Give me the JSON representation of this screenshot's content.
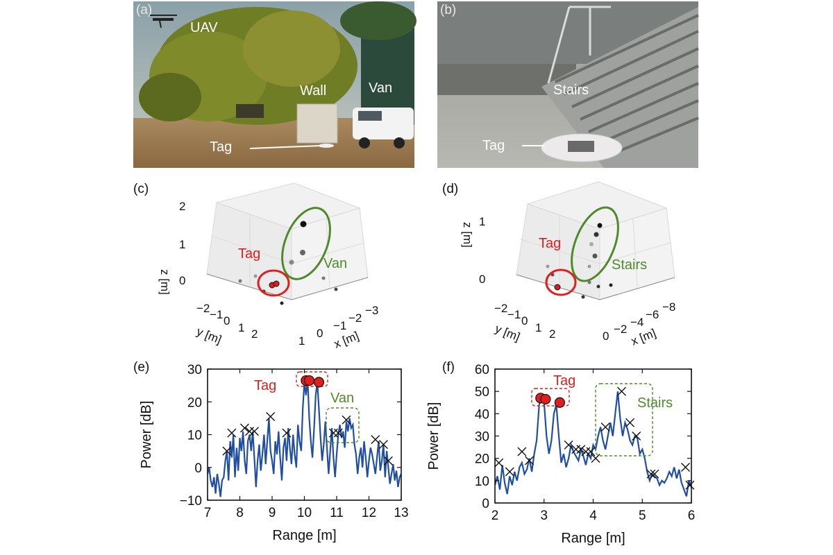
{
  "photos": {
    "a": {
      "letter": "(a)",
      "labels": {
        "uav": "UAV",
        "wall": "Wall",
        "van": "Van",
        "tag": "Tag"
      }
    },
    "b": {
      "letter": "(b)",
      "labels": {
        "stairs": "Stairs",
        "tag": "Tag"
      }
    }
  },
  "plots3d": {
    "c": {
      "letter": "(c)",
      "tag": "Tag",
      "target": "Van",
      "z_ticks": [
        "2",
        "1",
        "0"
      ],
      "y_ticks": [
        "−2",
        "−1",
        "0",
        "1",
        "2"
      ],
      "x_ticks": [
        "1",
        "0",
        "−1",
        "−2",
        "−3"
      ],
      "zlabel": "z [m]",
      "ylabel": "y [m]",
      "xlabel": "x [m]"
    },
    "d": {
      "letter": "(d)",
      "tag": "Tag",
      "target": "Stairs",
      "z_ticks": [
        "1",
        "0"
      ],
      "y_ticks": [
        "−2",
        "−1",
        "0",
        "1",
        "2"
      ],
      "x_ticks": [
        "0",
        "−2",
        "−4",
        "−6",
        "−8"
      ],
      "zlabel": "z [m]",
      "ylabel": "y [m]",
      "xlabel": "x [m]"
    }
  },
  "chart_data": [
    {
      "panel": "(e)",
      "type": "line",
      "xlabel": "Range [m]",
      "ylabel": "Power [dB]",
      "xlim": [
        7,
        13
      ],
      "ylim": [
        -10,
        30
      ],
      "xticks": [
        7,
        8,
        9,
        10,
        11,
        12,
        13
      ],
      "yticks": [
        -10,
        0,
        10,
        20,
        30
      ],
      "grid": false,
      "series": [
        {
          "color": "#1f4ea3",
          "x": [
            7.0,
            7.05,
            7.1,
            7.15,
            7.2,
            7.25,
            7.3,
            7.35,
            7.4,
            7.45,
            7.5,
            7.55,
            7.6,
            7.65,
            7.7,
            7.75,
            7.8,
            7.85,
            7.9,
            7.95,
            8.0,
            8.05,
            8.1,
            8.15,
            8.2,
            8.25,
            8.3,
            8.35,
            8.4,
            8.45,
            8.5,
            8.55,
            8.6,
            8.65,
            8.7,
            8.75,
            8.8,
            8.85,
            8.9,
            8.95,
            9.0,
            9.05,
            9.1,
            9.15,
            9.2,
            9.25,
            9.3,
            9.35,
            9.4,
            9.45,
            9.5,
            9.55,
            9.6,
            9.65,
            9.7,
            9.75,
            9.8,
            9.85,
            9.9,
            9.95,
            10.0,
            10.05,
            10.1,
            10.15,
            10.2,
            10.25,
            10.3,
            10.35,
            10.4,
            10.45,
            10.5,
            10.55,
            10.6,
            10.65,
            10.7,
            10.75,
            10.8,
            10.85,
            10.9,
            10.95,
            11.0,
            11.05,
            11.1,
            11.15,
            11.2,
            11.25,
            11.3,
            11.35,
            11.4,
            11.45,
            11.5,
            11.55,
            11.6,
            11.65,
            11.7,
            11.75,
            11.8,
            11.85,
            11.9,
            11.95,
            12.0,
            12.05,
            12.1,
            12.15,
            12.2,
            12.25,
            12.3,
            12.35,
            12.4,
            12.45,
            12.5,
            12.55,
            12.6,
            12.65,
            12.7,
            12.75,
            12.8,
            12.85,
            12.9,
            12.95,
            13.0
          ],
          "y": [
            -2,
            0,
            -4,
            -6,
            -3,
            -8,
            -2,
            -5,
            -9,
            -4,
            -3,
            2,
            5,
            -4,
            8,
            3,
            10,
            -3,
            6,
            -1,
            9,
            5,
            11,
            2,
            -2,
            8,
            10,
            5,
            11,
            3,
            -6,
            2,
            7,
            -1,
            4,
            10,
            1,
            8,
            15,
            5,
            2,
            -2,
            8,
            4,
            11,
            3,
            -4,
            6,
            9,
            2,
            12,
            6,
            1,
            10,
            4,
            0,
            13,
            8,
            5,
            18,
            26,
            22,
            27,
            15,
            8,
            3,
            12,
            22,
            26,
            18,
            9,
            2,
            7,
            14,
            6,
            -2,
            5,
            12,
            3,
            -3,
            4,
            10,
            13,
            9,
            11,
            6,
            14,
            11,
            15,
            12,
            13,
            7,
            4,
            -2,
            3,
            6,
            0,
            8,
            3,
            -3,
            2,
            6,
            4,
            1,
            -2,
            3,
            8,
            -1,
            2,
            7,
            -3,
            5,
            0,
            -5,
            -2,
            1,
            -4,
            -1,
            -6,
            -3,
            -2
          ]
        }
      ],
      "markers": {
        "tag": {
          "x": [
            10.05,
            10.15,
            10.45
          ],
          "y": [
            26.5,
            26.5,
            26.0
          ]
        },
        "other": {
          "x": [
            7.6,
            7.75,
            8.15,
            8.3,
            8.45,
            8.95,
            9.45,
            10.9,
            11.05,
            11.3,
            12.2,
            12.45,
            12.6
          ],
          "y": [
            5,
            10.5,
            12,
            11,
            11,
            15.5,
            10.5,
            10.5,
            10.5,
            14.5,
            8.5,
            7,
            2
          ]
        }
      },
      "annotations": {
        "tag": "Tag",
        "target": "Van"
      }
    },
    {
      "panel": "(f)",
      "type": "line",
      "xlabel": "Range [m]",
      "ylabel": "Power [dB]",
      "xlim": [
        2,
        6
      ],
      "ylim": [
        0,
        60
      ],
      "xticks": [
        2,
        3,
        4,
        5,
        6
      ],
      "yticks": [
        0,
        10,
        20,
        30,
        40,
        50,
        60
      ],
      "grid": false,
      "series": [
        {
          "color": "#1f4ea3",
          "x": [
            2.0,
            2.05,
            2.1,
            2.15,
            2.2,
            2.25,
            2.3,
            2.35,
            2.4,
            2.45,
            2.5,
            2.55,
            2.6,
            2.65,
            2.7,
            2.75,
            2.8,
            2.85,
            2.9,
            2.95,
            3.0,
            3.05,
            3.1,
            3.15,
            3.2,
            3.25,
            3.3,
            3.35,
            3.4,
            3.45,
            3.5,
            3.55,
            3.6,
            3.65,
            3.7,
            3.75,
            3.8,
            3.85,
            3.9,
            3.95,
            4.0,
            4.05,
            4.1,
            4.15,
            4.2,
            4.25,
            4.3,
            4.35,
            4.4,
            4.45,
            4.5,
            4.55,
            4.6,
            4.65,
            4.7,
            4.75,
            4.8,
            4.85,
            4.9,
            4.95,
            5.0,
            5.05,
            5.1,
            5.15,
            5.2,
            5.25,
            5.3,
            5.35,
            5.4,
            5.45,
            5.5,
            5.55,
            5.6,
            5.65,
            5.7,
            5.75,
            5.8,
            5.85,
            5.9,
            5.95,
            6.0
          ],
          "y": [
            8,
            12,
            6,
            17,
            9,
            4,
            12,
            8,
            14,
            10,
            16,
            18,
            13,
            15,
            20,
            14,
            22,
            28,
            44,
            47,
            45,
            30,
            22,
            28,
            40,
            44,
            30,
            18,
            22,
            16,
            20,
            26,
            23,
            21,
            19,
            24,
            21,
            17,
            22,
            20,
            26,
            24,
            30,
            34,
            28,
            24,
            30,
            36,
            30,
            40,
            50,
            38,
            30,
            36,
            33,
            28,
            26,
            30,
            29,
            22,
            24,
            20,
            14,
            10,
            13,
            12,
            11,
            8,
            10,
            9,
            11,
            14,
            12,
            16,
            11,
            15,
            9,
            6,
            3,
            10,
            7
          ]
        }
      ],
      "markers": {
        "tag": {
          "x": [
            2.93,
            3.03,
            3.32
          ],
          "y": [
            47,
            46.5,
            45
          ]
        },
        "other": {
          "x": [
            2.08,
            2.3,
            2.55,
            2.7,
            3.5,
            3.65,
            3.75,
            3.85,
            3.95,
            4.05,
            4.25,
            4.58,
            4.75,
            4.88,
            5.18,
            5.25,
            5.88,
            5.97
          ],
          "y": [
            18,
            14,
            23,
            19,
            26,
            24,
            24,
            23,
            23,
            20,
            34,
            50,
            36,
            30,
            13,
            13,
            16,
            8
          ]
        }
      },
      "annotations": {
        "tag": "Tag",
        "target": "Stairs"
      }
    }
  ]
}
